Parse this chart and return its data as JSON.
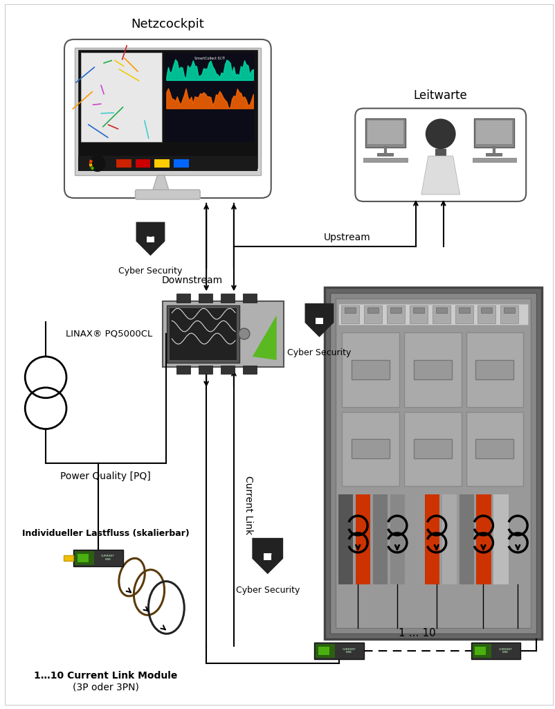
{
  "bg": "#ffffff",
  "text_netzcockpit": "Netzcockpit",
  "text_leitwarte": "Leitwarte",
  "text_cyber_security": "Cyber Security",
  "text_downstream": "Downstream",
  "text_upstream": "Upstream",
  "text_linax": "LINAX® PQ5000CL",
  "text_power_quality": "Power Quality [PQ]",
  "text_current_link": "Current Link",
  "text_individueller": "Individueller Lastfluss (skalierbar)",
  "text_1_10_module": "1…10 Current Link Module",
  "text_3p": "(3P oder 3PN)",
  "text_1_10": "1 … 10"
}
